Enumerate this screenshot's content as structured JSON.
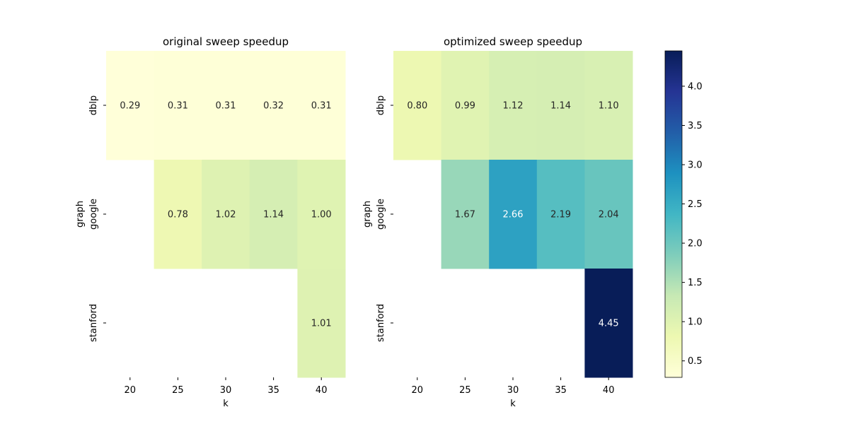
{
  "chart_data": [
    {
      "type": "heatmap",
      "title": "original sweep speedup",
      "xlabel": "k",
      "ylabel": "graph",
      "x": [
        "20",
        "25",
        "30",
        "35",
        "40"
      ],
      "y": [
        "dblp",
        "google",
        "stanford"
      ],
      "values": [
        [
          0.29,
          0.31,
          0.31,
          0.32,
          0.31
        ],
        [
          null,
          0.78,
          1.02,
          1.14,
          1.0
        ],
        [
          null,
          null,
          null,
          null,
          1.01
        ]
      ],
      "labels": [
        [
          "0.29",
          "0.31",
          "0.31",
          "0.32",
          "0.31"
        ],
        [
          "",
          "0.78",
          "1.02",
          "1.14",
          "1.00"
        ],
        [
          "",
          "",
          "",
          "",
          "1.01"
        ]
      ]
    },
    {
      "type": "heatmap",
      "title": "optimized sweep speedup",
      "xlabel": "k",
      "ylabel": "graph",
      "x": [
        "20",
        "25",
        "30",
        "35",
        "40"
      ],
      "y": [
        "dblp",
        "google",
        "stanford"
      ],
      "values": [
        [
          0.8,
          0.99,
          1.12,
          1.14,
          1.1
        ],
        [
          null,
          1.67,
          2.66,
          2.19,
          2.04
        ],
        [
          null,
          null,
          null,
          null,
          4.45
        ]
      ],
      "labels": [
        [
          "0.80",
          "0.99",
          "1.12",
          "1.14",
          "1.10"
        ],
        [
          "",
          "1.67",
          "2.66",
          "2.19",
          "2.04"
        ],
        [
          "",
          "",
          "",
          "",
          "4.45"
        ]
      ]
    }
  ],
  "colorbar": {
    "colormap": "YlGnBu",
    "vmin": 0.29,
    "vmax": 4.45,
    "ticks": [
      "0.5",
      "1.0",
      "1.5",
      "2.0",
      "2.5",
      "3.0",
      "3.5",
      "4.0"
    ]
  },
  "colors": {
    "cmap_stops": [
      "#ffffd9",
      "#edf8b1",
      "#c7e9b4",
      "#7fcdbb",
      "#41b6c4",
      "#1d91c0",
      "#225ea8",
      "#253494",
      "#081d58"
    ],
    "dark_text": "#262626",
    "light_text": "#ffffff"
  }
}
